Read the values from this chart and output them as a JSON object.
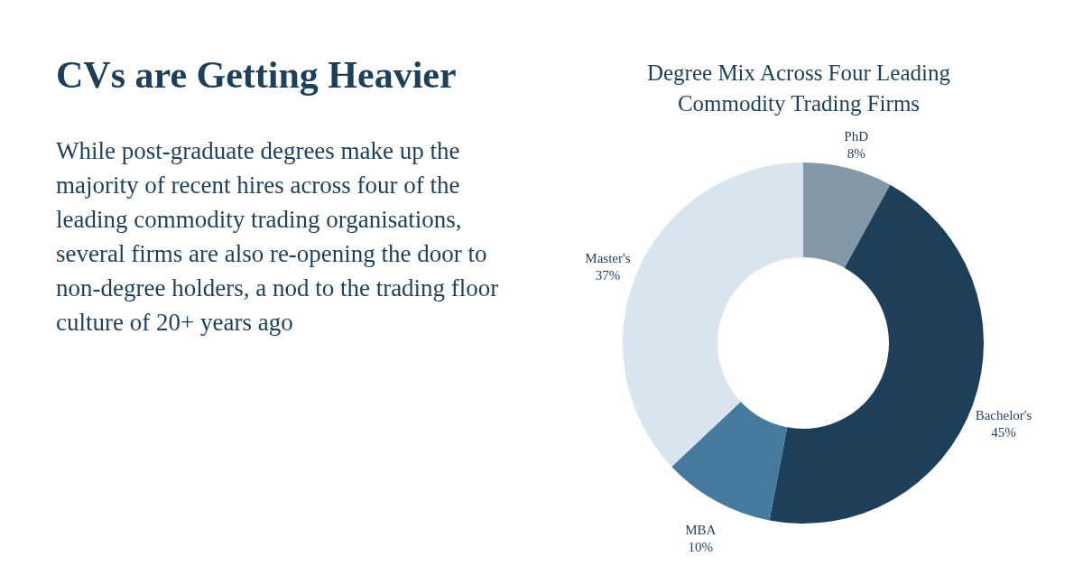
{
  "chart_data": {
    "type": "donut",
    "title": "Degree Mix Across Four Leading Commodity Trading Firms",
    "annotations": [
      "CVs are Getting Heavier",
      "While post-graduate degrees make up the majority of recent hires across four of the leading commodity trading organisations, several firms are also re-opening the door to non-degree holders, a nod to the trading floor culture of 20+ years ago"
    ],
    "categories": [
      "PhD",
      "Bachelor's",
      "MBA",
      "Master's"
    ],
    "values": [
      8,
      45,
      10,
      37
    ],
    "value_labels": [
      "8%",
      "45%",
      "10%",
      "37%"
    ],
    "colors": [
      "#8499a8",
      "#1e3f5a",
      "#46799e",
      "#d9e4ef"
    ],
    "legend": false
  }
}
